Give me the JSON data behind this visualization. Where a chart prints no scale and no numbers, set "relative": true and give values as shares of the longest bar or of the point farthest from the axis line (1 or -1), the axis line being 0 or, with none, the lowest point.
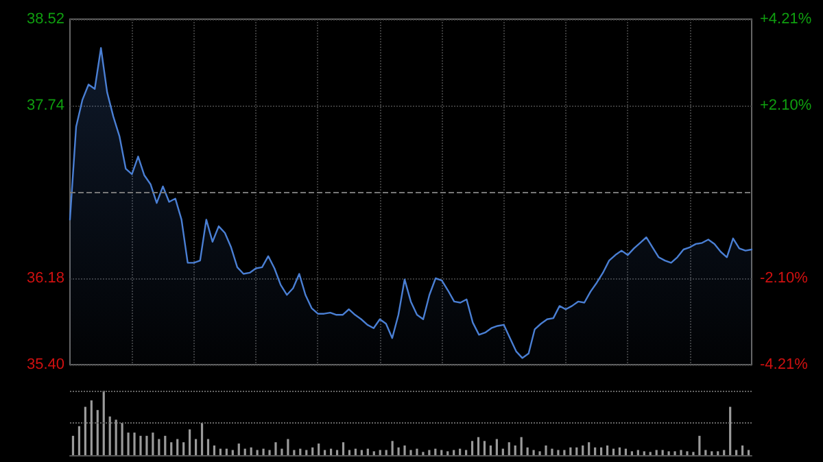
{
  "chart_data": [
    {
      "type": "area",
      "categories": [
        null,
        null,
        null,
        null,
        null,
        null,
        null,
        null,
        null,
        null,
        null,
        null,
        null,
        null,
        null,
        null,
        null,
        null,
        null,
        null,
        null,
        null,
        null,
        null,
        null,
        null,
        null,
        null,
        null,
        null,
        null,
        null,
        null,
        null,
        null,
        null,
        null,
        null,
        null,
        null,
        null,
        null,
        null,
        null,
        null,
        null,
        null,
        null,
        null,
        null,
        null,
        null,
        null,
        null,
        null,
        null,
        null,
        null,
        null,
        null,
        null,
        null,
        null,
        null,
        null,
        null,
        null,
        null,
        null,
        null,
        null,
        null,
        null,
        null,
        null,
        null,
        null,
        null,
        null,
        null,
        null,
        null,
        null,
        null,
        null,
        null,
        null,
        null,
        null,
        null,
        null,
        null,
        null,
        null,
        null,
        null,
        null,
        null,
        null,
        null,
        null,
        null,
        null,
        null,
        null,
        null,
        null,
        null,
        null,
        null,
        null
      ],
      "series": [
        {
          "color": "#4a7fd4",
          "values": [
            36.71,
            37.55,
            37.79,
            37.93,
            37.89,
            38.26,
            37.86,
            37.64,
            37.46,
            37.17,
            37.12,
            37.28,
            37.11,
            37.03,
            36.86,
            37.01,
            36.87,
            36.9,
            36.71,
            36.32,
            36.32,
            36.34,
            36.71,
            36.51,
            36.65,
            36.59,
            36.46,
            36.28,
            36.22,
            36.23,
            36.27,
            36.28,
            36.38,
            36.27,
            36.12,
            36.03,
            36.09,
            36.22,
            36.03,
            35.91,
            35.86,
            35.86,
            35.87,
            35.85,
            35.85,
            35.9,
            35.85,
            35.81,
            35.76,
            35.73,
            35.81,
            35.77,
            35.64,
            35.85,
            36.17,
            35.97,
            35.85,
            35.81,
            36.03,
            36.18,
            36.16,
            36.07,
            35.97,
            35.96,
            35.99,
            35.78,
            35.67,
            35.69,
            35.73,
            35.75,
            35.76,
            35.64,
            35.52,
            35.46,
            35.5,
            35.72,
            35.77,
            35.81,
            35.82,
            35.93,
            35.9,
            35.93,
            35.97,
            35.96,
            36.06,
            36.14,
            36.23,
            36.34,
            36.39,
            36.43,
            36.39,
            36.45,
            36.5,
            36.55,
            36.46,
            36.37,
            36.34,
            36.32,
            36.37,
            36.44,
            36.46,
            36.49,
            36.5,
            36.53,
            36.49,
            36.42,
            36.37,
            36.54,
            36.45,
            36.43,
            36.44
          ]
        }
      ],
      "ylim": [
        35.4,
        38.52
      ],
      "yticks": [
        38.52,
        37.74,
        36.18,
        {
          "value": 35.4,
          "label": "35.40"
        }
      ],
      "y2lim": [
        -4.21,
        4.21
      ],
      "y2ticks": [
        {
          "value": 4.21,
          "label": "+4.21%"
        },
        {
          "value": 2.1,
          "label": "+2.10%"
        },
        {
          "value": -2.1,
          "label": "-2.10%"
        },
        {
          "value": -4.21,
          "label": "-4.21%"
        }
      ],
      "ref_lines": [
        {
          "axis": "y",
          "value": 36.96,
          "line_style": "dashed"
        }
      ],
      "grid": true,
      "line_style": "solid"
    },
    {
      "type": "bar",
      "relative": true,
      "color": "#9a9a9a",
      "ref_lines": [
        {
          "axis": "y",
          "value": 1,
          "line_style": "dotted"
        },
        {
          "axis": "y",
          "value": 0.5,
          "line_style": "dotted"
        }
      ],
      "categories": [
        null,
        null,
        null,
        null,
        null,
        null,
        null,
        null,
        null,
        null,
        null,
        null,
        null,
        null,
        null,
        null,
        null,
        null,
        null,
        null,
        null,
        null,
        null,
        null,
        null,
        null,
        null,
        null,
        null,
        null,
        null,
        null,
        null,
        null,
        null,
        null,
        null,
        null,
        null,
        null,
        null,
        null,
        null,
        null,
        null,
        null,
        null,
        null,
        null,
        null,
        null,
        null,
        null,
        null,
        null,
        null,
        null,
        null,
        null,
        null,
        null,
        null,
        null,
        null,
        null,
        null,
        null,
        null,
        null,
        null,
        null,
        null,
        null,
        null,
        null,
        null,
        null,
        null,
        null,
        null,
        null,
        null,
        null,
        null,
        null,
        null,
        null,
        null,
        null,
        null,
        null,
        null,
        null,
        null,
        null,
        null,
        null,
        null,
        null,
        null,
        null,
        null,
        null,
        null,
        null,
        null,
        null,
        null,
        null,
        null,
        null
      ],
      "values": [
        0.3,
        0.45,
        0.75,
        0.85,
        0.7,
        1.0,
        0.6,
        0.55,
        0.5,
        0.35,
        0.35,
        0.3,
        0.3,
        0.35,
        0.25,
        0.3,
        0.2,
        0.25,
        0.2,
        0.4,
        0.25,
        0.5,
        0.25,
        0.15,
        0.1,
        0.1,
        0.08,
        0.18,
        0.1,
        0.12,
        0.08,
        0.1,
        0.08,
        0.2,
        0.1,
        0.25,
        0.08,
        0.1,
        0.08,
        0.12,
        0.18,
        0.08,
        0.1,
        0.08,
        0.2,
        0.08,
        0.1,
        0.08,
        0.1,
        0.06,
        0.08,
        0.08,
        0.22,
        0.12,
        0.15,
        0.08,
        0.1,
        0.05,
        0.08,
        0.1,
        0.08,
        0.06,
        0.08,
        0.1,
        0.08,
        0.22,
        0.28,
        0.22,
        0.15,
        0.25,
        0.1,
        0.2,
        0.15,
        0.28,
        0.12,
        0.08,
        0.06,
        0.15,
        0.1,
        0.08,
        0.08,
        0.12,
        0.12,
        0.15,
        0.2,
        0.12,
        0.12,
        0.15,
        0.1,
        0.12,
        0.1,
        0.06,
        0.08,
        0.06,
        0.05,
        0.08,
        0.08,
        0.06,
        0.06,
        0.08,
        0.06,
        0.05,
        0.3,
        0.08,
        0.06,
        0.06,
        0.08,
        0.75,
        0.08,
        0.15,
        0.08
      ]
    }
  ]
}
